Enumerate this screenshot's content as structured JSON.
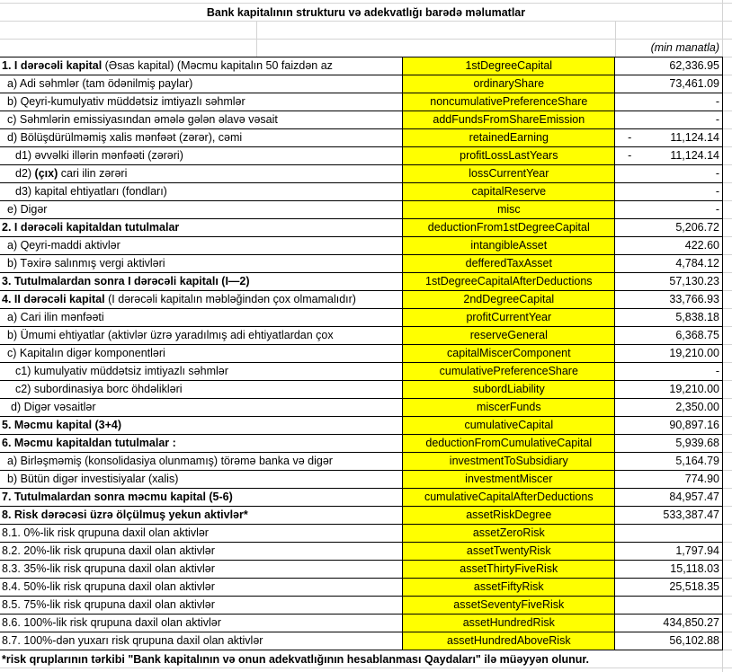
{
  "title": "Bank kapitalının strukturu və adekvatlığı barədə məlumatlar",
  "unit_label": "(min manatla)",
  "rows": [
    {
      "bold": "1. I dərəcəli kapital",
      "text": " (Əsas kapital) (Məcmu kapitalın 50 faizdən  az",
      "indent": 0,
      "field": "1stDegreeCapital",
      "sign": "",
      "value": "62,336.95"
    },
    {
      "bold": "",
      "text": "a) Adi səhmlər (tam ödənilmiş paylar)",
      "indent": 1,
      "field": "ordinaryShare",
      "sign": "",
      "value": "73,461.09"
    },
    {
      "bold": "",
      "text": "b) Qeyri-kumulyativ müddətsiz imtiyazlı səhmlər",
      "indent": 1,
      "field": "noncumulativePreferenceShare",
      "sign": "",
      "value": "-"
    },
    {
      "bold": "",
      "text": "c) Səhmlərin emissiyasından əmələ gələn  əlavə vəsait",
      "indent": 1,
      "field": "addFundsFromShareEmission",
      "sign": "",
      "value": "-"
    },
    {
      "bold": "",
      "text": "d)   Bölüşdürülməmiş xalis mənfəət (zərər), cəmi",
      "indent": 1,
      "field": "retainedEarning",
      "sign": "-",
      "value": "11,124.14"
    },
    {
      "bold": "",
      "text": "d1) əvvəlki illərin mənfəəti (zərəri)",
      "indent": 2,
      "field": "profitLossLastYears",
      "sign": "-",
      "value": "11,124.14"
    },
    {
      "pre": "d2) ",
      "bold": "(çıx)",
      "text": " cari ilin zərəri",
      "indent": 2,
      "field": "lossCurrentYear",
      "sign": "",
      "value": "-"
    },
    {
      "bold": "",
      "text": "d3) kapital ehtiyatları (fondları)",
      "indent": 2,
      "field": "capitalReserve",
      "sign": "",
      "value": "-"
    },
    {
      "bold": "",
      "text": "e) Digər",
      "indent": 1,
      "field": "misc",
      "sign": "",
      "value": "-"
    },
    {
      "bold": "2. I dərəcəli kapitaldan  tutulmalar",
      "text": "",
      "indent": 0,
      "field": "deductionFrom1stDegreeCapital",
      "sign": "",
      "value": "5,206.72"
    },
    {
      "bold": "",
      "text": "a) Qeyri-maddi aktivlər",
      "indent": 1,
      "field": "intangibleAsset",
      "sign": "",
      "value": "422.60"
    },
    {
      "bold": "",
      "text": "b) Təxirə salınmış vergi aktivləri",
      "indent": 1,
      "field": "defferedTaxAsset",
      "sign": "",
      "value": "4,784.12"
    },
    {
      "bold": "3. Tutulmalardan  sonra I dərəcəli kapitalı (I—2)",
      "text": "",
      "indent": 0,
      "field": "1stDegreeCapitalAfterDeductions",
      "sign": "",
      "value": "57,130.23"
    },
    {
      "bold": "4. II dərəcəli  kapital",
      "text": " (I dərəcəli  kapitalın  məbləğindən çox olmamalıdır)",
      "indent": 0,
      "field": "2ndDegreeCapital",
      "sign": "",
      "value": "33,766.93"
    },
    {
      "bold": "",
      "text": "a) Cari ilin mənfəəti",
      "indent": 1,
      "field": "profitCurrentYear",
      "sign": "",
      "value": "5,838.18"
    },
    {
      "bold": "",
      "text": "b) Ümumi ehtiyatlar (aktivlər üzrə yaradılmış adi ehtiyatlardan çox",
      "indent": 1,
      "field": "reserveGeneral",
      "sign": "",
      "value": "6,368.75"
    },
    {
      "bold": "",
      "text": "c)  Kapitalın digər komponentləri",
      "indent": 1,
      "field": "capitalMiscerComponent",
      "sign": "",
      "value": "19,210.00"
    },
    {
      "bold": "",
      "text": "c1) kumulyativ müddətsiz imtiyazlı səhmlər",
      "indent": 2,
      "field": "cumulativePreferenceShare",
      "sign": "",
      "value": "-"
    },
    {
      "bold": "",
      "text": "c2) subordinasiya borc öhdəlikləri",
      "indent": 2,
      "field": "subordLiability",
      "sign": "",
      "value": "19,210.00"
    },
    {
      "bold": "",
      "text": "d) Digər vəsaitlər",
      "indent": 3,
      "field": "miscerFunds",
      "sign": "",
      "value": "2,350.00"
    },
    {
      "bold": "5. Məcmu kapital (3+4)",
      "text": "",
      "indent": 0,
      "field": "cumulativeCapital",
      "sign": "",
      "value": "90,897.16"
    },
    {
      "bold": "6. Məcmu kapitaldan tutulmalar :",
      "text": "",
      "indent": 0,
      "field": "deductionFromCumulativeCapital",
      "sign": "",
      "value": "5,939.68"
    },
    {
      "bold": "",
      "text": "a)   Birləşməmiş (konsolidasiya olunmamış) törəmə banka və digər",
      "indent": 1,
      "field": "investmentToSubsidiary",
      "sign": "",
      "value": "5,164.79"
    },
    {
      "bold": "",
      "text": "b)    Bütün digər investisiyalar (xalis)",
      "indent": 1,
      "field": "investmentMiscer",
      "sign": "",
      "value": "774.90"
    },
    {
      "bold": "7. Tutulmalardan  sonra məcmu kapital (5-6)",
      "text": "",
      "indent": 0,
      "field": "cumulativeCapitalAfterDeductions",
      "sign": "",
      "value": "84,957.47"
    },
    {
      "bold": "8. Risk dərəcəsi üzrə ölçülmuş  yekun aktivlər*",
      "text": "",
      "indent": 0,
      "field": "assetRiskDegree",
      "sign": "",
      "value": "533,387.47"
    },
    {
      "bold": "",
      "text": "8.1. 0%-lik risk qrupuna daxil olan aktivlər",
      "indent": 0,
      "field": "assetZeroRisk",
      "sign": "",
      "value": ""
    },
    {
      "bold": "",
      "text": "8.2. 20%-lik risk qrupuna daxil olan aktivlər",
      "indent": 0,
      "field": "assetTwentyRisk",
      "sign": "",
      "value": "1,797.94"
    },
    {
      "bold": "",
      "text": "8.3. 35%-lik risk qrupuna daxil olan aktivlər",
      "indent": 0,
      "field": "assetThirtyFiveRisk",
      "sign": "",
      "value": "15,118.03"
    },
    {
      "bold": "",
      "text": "8.4. 50%-lik risk qrupuna daxil olan aktivlər",
      "indent": 0,
      "field": "assetFiftyRisk",
      "sign": "",
      "value": "25,518.35"
    },
    {
      "bold": "",
      "text": "8.5.  75%-lik risk qrupuna daxil olan aktivlər",
      "indent": 0,
      "field": "assetSeventyFiveRisk",
      "sign": "",
      "value": ""
    },
    {
      "bold": "",
      "text": "8.6.  100%-lik risk qrupuna daxil olan aktivlər",
      "indent": 0,
      "field": "assetHundredRisk",
      "sign": "",
      "value": "434,850.27"
    },
    {
      "bold": "",
      "text": "8.7. 100%-dən yuxarı risk qrupuna daxil olan aktivlər",
      "indent": 0,
      "field": "assetHundredAboveRisk",
      "sign": "",
      "value": "56,102.88"
    }
  ],
  "footnote": "*risk qruplarının tərkibi \"Bank kapitalının və onun adekvatlığının hesablanması Qaydaları\" ilə müəyyən olunur.",
  "colors": {
    "highlight": "#ffff00",
    "border": "#000000",
    "gridline": "#d4d4d4"
  }
}
